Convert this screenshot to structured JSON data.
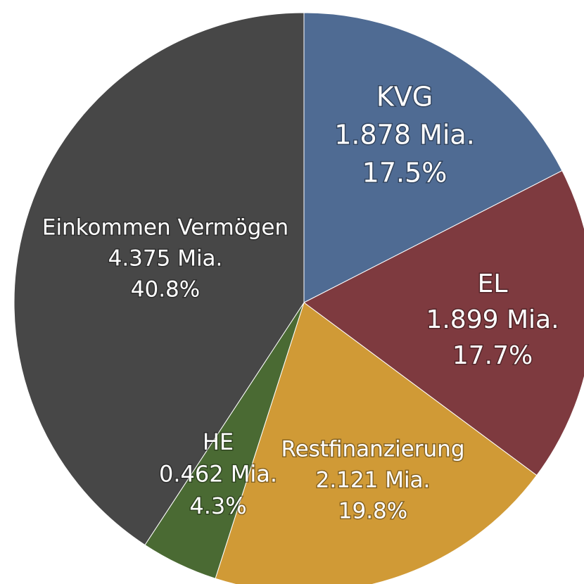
{
  "chart_data": {
    "type": "pie",
    "categories": [
      "KVG",
      "EL",
      "Restfinanzierung",
      "HE",
      "Einkommen Vermögen"
    ],
    "values": [
      17.5,
      17.7,
      19.8,
      4.3,
      40.8
    ],
    "value_labels": [
      "17.5%",
      "17.7%",
      "19.8%",
      "4.3%",
      "40.8%"
    ],
    "amounts": [
      1.878,
      1.899,
      2.121,
      0.462,
      4.375
    ],
    "amount_labels": [
      "1.878 Mia.",
      "1.899 Mia.",
      "2.121 Mia.",
      "0.462 Mia.",
      "4.375 Mia."
    ],
    "colors": [
      "#4f6b93",
      "#7e3a3f",
      "#d09a36",
      "#4a6a33",
      "#474747"
    ]
  }
}
